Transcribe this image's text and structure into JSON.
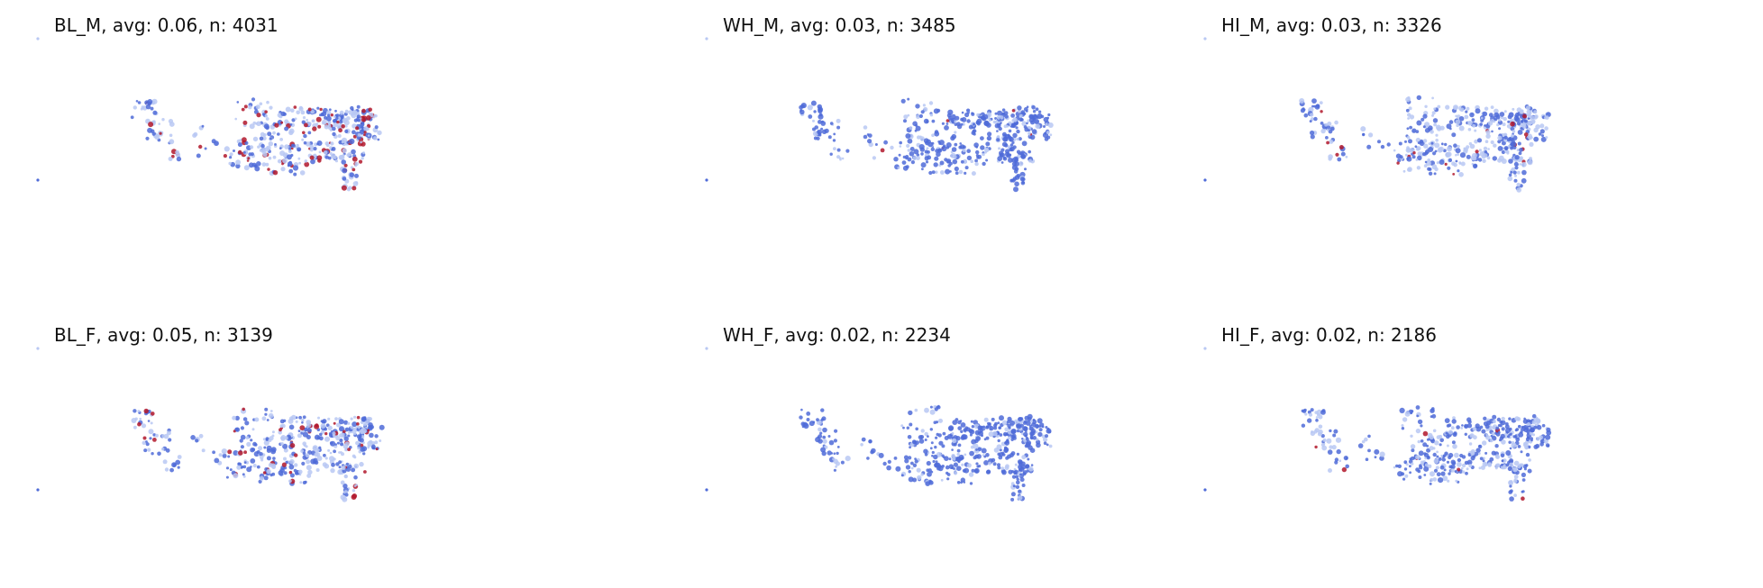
{
  "palette": {
    "low": "#4f6bd8",
    "mid": "#b9c8f3",
    "high": "#b2182b"
  },
  "chart_data": [
    {
      "type": "scatter",
      "title": "BL_M, avg: 0.06, n: 4031",
      "avg": 0.06,
      "n": 4031,
      "high_fraction": 0.16,
      "mid_fraction": 0.45
    },
    {
      "type": "scatter",
      "title": "WH_M, avg: 0.03, n: 3485",
      "avg": 0.03,
      "n": 3485,
      "high_fraction": 0.01,
      "mid_fraction": 0.28
    },
    {
      "type": "scatter",
      "title": "HI_M, avg: 0.03, n: 3326",
      "avg": 0.03,
      "n": 3326,
      "high_fraction": 0.03,
      "mid_fraction": 0.48
    },
    {
      "type": "scatter",
      "title": "BL_F, avg: 0.05, n: 3139",
      "avg": 0.05,
      "n": 3139,
      "high_fraction": 0.09,
      "mid_fraction": 0.45
    },
    {
      "type": "scatter",
      "title": "WH_F, avg: 0.02, n: 2234",
      "avg": 0.02,
      "n": 2234,
      "high_fraction": 0.0,
      "mid_fraction": 0.2
    },
    {
      "type": "scatter",
      "title": "HI_F, avg: 0.02, n: 2186",
      "avg": 0.02,
      "n": 2186,
      "high_fraction": 0.02,
      "mid_fraction": 0.38
    }
  ]
}
